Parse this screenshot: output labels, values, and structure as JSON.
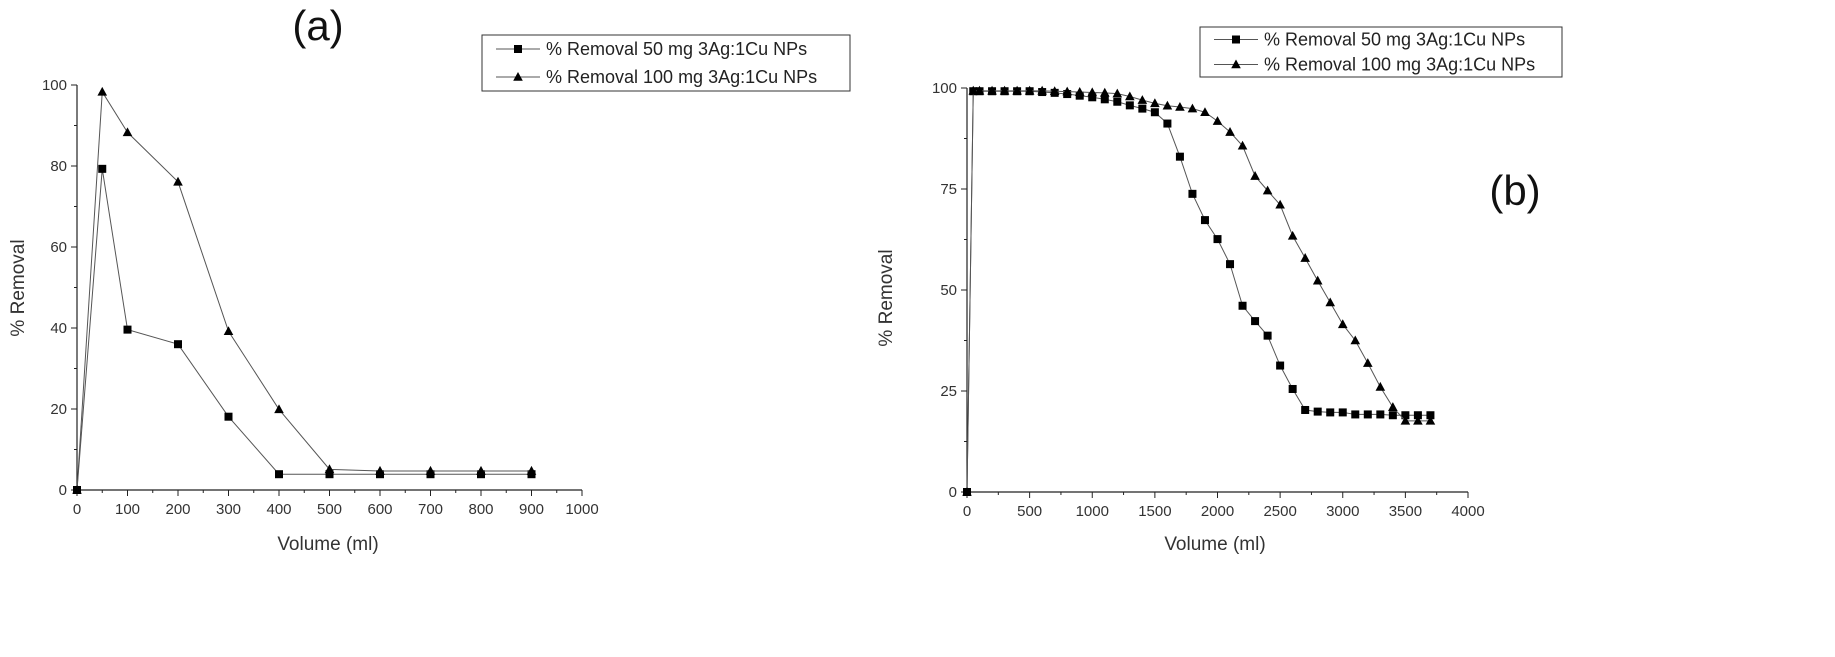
{
  "chart_data": [
    {
      "type": "line",
      "panel_label": "(a)",
      "xlabel": "Volume (ml)",
      "ylabel": "% Removal",
      "xlim": [
        0,
        1000
      ],
      "ylim": [
        0,
        100
      ],
      "xticks": [
        0,
        100,
        200,
        300,
        400,
        500,
        600,
        700,
        800,
        900,
        1000
      ],
      "yticks": [
        0,
        20,
        40,
        60,
        80,
        100
      ],
      "legend_position": "top-right",
      "grid": false,
      "series": [
        {
          "name": "% Removal 50 mg 3Ag:1Cu NPs",
          "marker": "square",
          "x": [
            0,
            50,
            100,
            200,
            300,
            400,
            500,
            600,
            700,
            800,
            900
          ],
          "y": [
            0,
            79.3,
            39.6,
            36.0,
            18.1,
            3.9,
            3.9,
            3.9,
            3.9,
            3.9,
            3.9
          ]
        },
        {
          "name": "% Removal 100 mg 3Ag:1Cu NPs",
          "marker": "triangle",
          "x": [
            0,
            50,
            100,
            200,
            300,
            400,
            500,
            600,
            700,
            800,
            900
          ],
          "y": [
            0,
            98.3,
            88.3,
            76.1,
            39.2,
            19.9,
            5.1,
            4.7,
            4.7,
            4.7,
            4.7
          ]
        }
      ]
    },
    {
      "type": "line",
      "panel_label": "(b)",
      "xlabel": "Volume (ml)",
      "ylabel": "% Removal",
      "xlim": [
        0,
        4000
      ],
      "ylim": [
        0,
        100
      ],
      "xticks": [
        0,
        500,
        1000,
        1500,
        2000,
        2500,
        3000,
        3500,
        4000
      ],
      "yticks": [
        0,
        25,
        50,
        75,
        100
      ],
      "legend_position": "top-right",
      "grid": false,
      "series": [
        {
          "name": "% Removal 50 mg 3Ag:1Cu NPs",
          "marker": "square",
          "x": [
            0,
            50,
            100,
            200,
            300,
            400,
            500,
            600,
            700,
            800,
            900,
            1000,
            1100,
            1200,
            1300,
            1400,
            1500,
            1600,
            1700,
            1800,
            1900,
            2000,
            2100,
            2200,
            2300,
            2400,
            2500,
            2600,
            2700,
            2800,
            2900,
            3000,
            3100,
            3200,
            3300,
            3400,
            3500,
            3600,
            3700
          ],
          "y": [
            0,
            99.2,
            99.2,
            99.2,
            99.2,
            99.2,
            99.2,
            99.0,
            98.8,
            98.5,
            98.1,
            97.7,
            97.2,
            96.6,
            95.7,
            94.9,
            94.0,
            91.2,
            83.0,
            73.8,
            67.3,
            62.6,
            56.4,
            46.1,
            42.3,
            38.7,
            31.3,
            25.5,
            20.3,
            19.9,
            19.7,
            19.7,
            19.2,
            19.2,
            19.2,
            19.0,
            19.0,
            19.0,
            19.0
          ]
        },
        {
          "name": "% Removal 100 mg 3Ag:1Cu NPs",
          "marker": "triangle",
          "x": [
            0,
            50,
            100,
            200,
            300,
            400,
            500,
            600,
            700,
            800,
            900,
            1000,
            1100,
            1200,
            1300,
            1400,
            1500,
            1600,
            1700,
            1800,
            1900,
            2000,
            2100,
            2200,
            2300,
            2400,
            2500,
            2600,
            2700,
            2800,
            2900,
            3000,
            3100,
            3200,
            3300,
            3400,
            3500,
            3600,
            3700
          ],
          "y": [
            0,
            99.3,
            99.3,
            99.3,
            99.3,
            99.3,
            99.3,
            99.3,
            99.2,
            99.1,
            99.0,
            98.9,
            98.8,
            98.6,
            97.9,
            97.0,
            96.2,
            95.6,
            95.3,
            94.9,
            94.0,
            91.8,
            89.1,
            85.7,
            78.2,
            74.6,
            71.1,
            63.4,
            57.9,
            52.3,
            46.9,
            41.5,
            37.5,
            31.9,
            26.0,
            21.0,
            17.6,
            17.6,
            17.6
          ]
        }
      ]
    }
  ]
}
